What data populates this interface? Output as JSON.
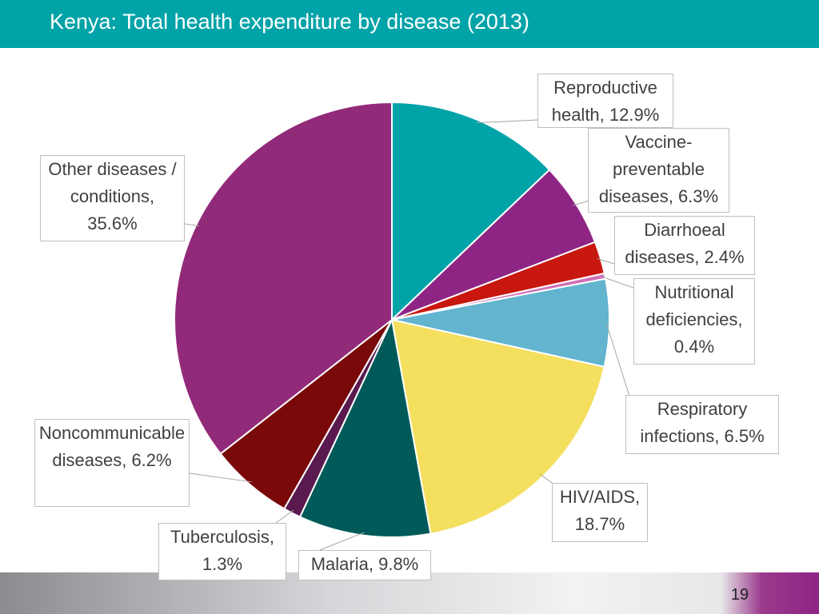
{
  "title": "Kenya:  Total health expenditure by disease (2013)",
  "page_number": 19,
  "chart_data": {
    "type": "pie",
    "values": [
      12.9,
      6.3,
      2.4,
      0.4,
      6.5,
      18.7,
      9.8,
      1.3,
      6.2,
      35.6
    ],
    "value_labels": [
      "Reproductive health, 12.9%",
      "Vaccine-preventable diseases, 6.3%",
      "Diarrhoeal diseases, 2.4%",
      "Nutritional deficiencies, 0.4%",
      "Respiratory infections, 6.5%",
      "HIV/AIDS, 18.7%",
      "Malaria, 9.8%",
      "Tuberculosis, 1.3%",
      "Noncommunicable diseases, 6.2%",
      "Other diseases / conditions, 35.6%"
    ],
    "colors": [
      "#00a3a8",
      "#8e2585",
      "#c8170f",
      "#d070b8",
      "#62b4cf",
      "#f4df5f",
      "#005a5a",
      "#5a1a50",
      "#7a0a0a",
      "#922a7a"
    ]
  }
}
